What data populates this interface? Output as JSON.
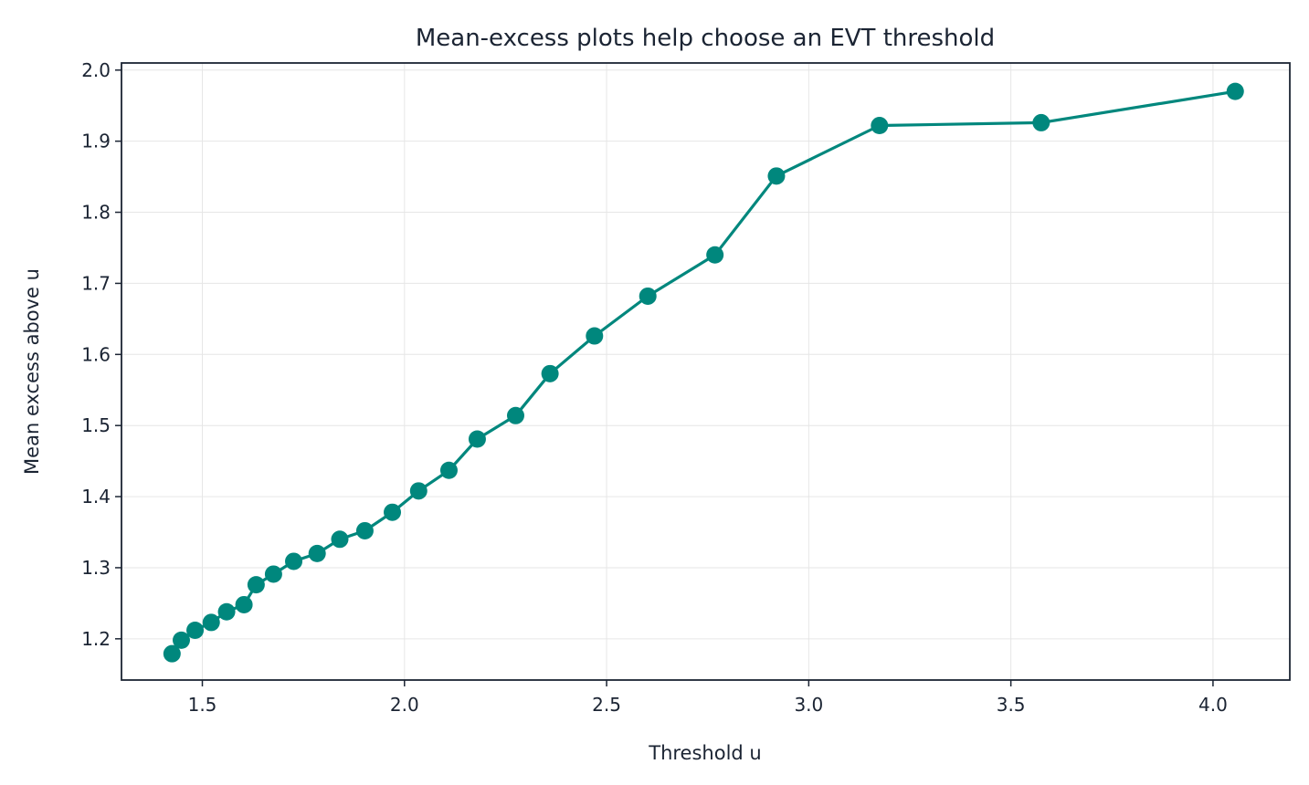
{
  "chart_data": {
    "type": "line",
    "title": "Mean-excess plots help choose an EVT threshold",
    "xlabel": "Threshold u",
    "ylabel": "Mean excess above u",
    "xlim": [
      1.3,
      4.19
    ],
    "ylim": [
      1.142,
      2.01
    ],
    "xticks": [
      1.5,
      2.0,
      2.5,
      3.0,
      3.5,
      4.0
    ],
    "xtick_labels": [
      "1.5",
      "2.0",
      "2.5",
      "3.0",
      "3.5",
      "4.0"
    ],
    "yticks": [
      1.2,
      1.3,
      1.4,
      1.5,
      1.6,
      1.7,
      1.8,
      1.9,
      2.0
    ],
    "ytick_labels": [
      "1.2",
      "1.3",
      "1.4",
      "1.5",
      "1.6",
      "1.7",
      "1.8",
      "1.9",
      "2.0"
    ],
    "grid": true,
    "color": "#00877d",
    "series": [
      {
        "x": [
          1.425,
          1.448,
          1.482,
          1.522,
          1.56,
          1.603,
          1.633,
          1.676,
          1.726,
          1.784,
          1.84,
          1.902,
          1.97,
          2.035,
          2.11,
          2.18,
          2.275,
          2.36,
          2.47,
          2.602,
          2.768,
          2.92,
          3.175,
          3.575,
          4.055
        ],
        "y": [
          1.179,
          1.198,
          1.212,
          1.223,
          1.238,
          1.248,
          1.276,
          1.291,
          1.309,
          1.32,
          1.34,
          1.352,
          1.378,
          1.408,
          1.437,
          1.481,
          1.514,
          1.573,
          1.626,
          1.682,
          1.74,
          1.851,
          1.922,
          1.926,
          1.97
        ]
      }
    ]
  }
}
